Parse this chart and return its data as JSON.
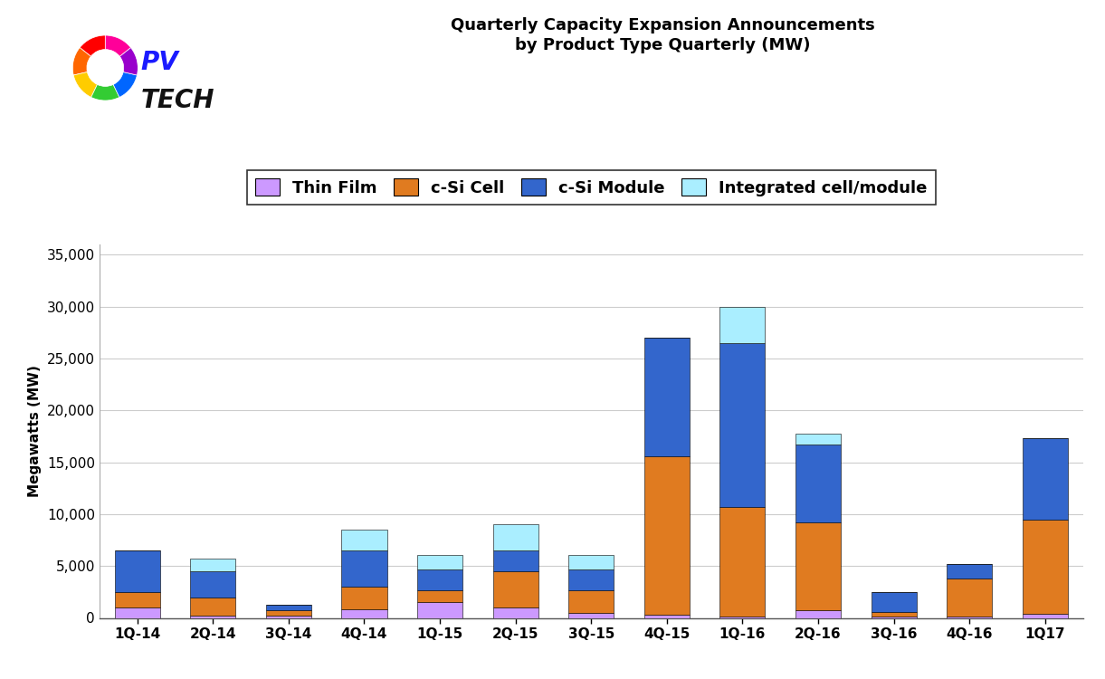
{
  "categories": [
    "1Q-14",
    "2Q-14",
    "3Q-14",
    "4Q-14",
    "1Q-15",
    "2Q-15",
    "3Q-15",
    "4Q-15",
    "1Q-16",
    "2Q-16",
    "3Q-16",
    "4Q-16",
    "1Q17"
  ],
  "thin_film": [
    1000,
    200,
    200,
    800,
    1500,
    1000,
    500,
    300,
    100,
    700,
    100,
    100,
    370
  ],
  "csi_cell": [
    1500,
    1800,
    500,
    2200,
    1200,
    3500,
    2200,
    15300,
    10600,
    8500,
    500,
    3700,
    9140
  ],
  "csi_module": [
    4000,
    2500,
    600,
    3500,
    2000,
    2000,
    2000,
    11400,
    15800,
    7500,
    1900,
    1400,
    7815
  ],
  "integrated": [
    0,
    1200,
    0,
    2000,
    1400,
    2500,
    1400,
    0,
    3500,
    1100,
    0,
    0,
    0
  ],
  "colors": {
    "thin_film": "#cc99ff",
    "csi_cell": "#e07b20",
    "csi_module": "#3366cc",
    "integrated": "#aaeeff"
  },
  "title_line1": "Quarterly Capacity Expansion Announcements",
  "title_line2": "by Product Type Quarterly (MW)",
  "ylabel": "Megawatts (MW)",
  "ylim": [
    0,
    36000
  ],
  "yticks": [
    0,
    5000,
    10000,
    15000,
    20000,
    25000,
    30000,
    35000
  ],
  "legend_labels": [
    "Thin Film",
    "c-Si Cell",
    "c-Si Module",
    "Integrated cell/module"
  ],
  "background_color": "#ffffff",
  "grid_color": "#cccccc",
  "title_fontsize": 13,
  "axis_fontsize": 11,
  "tick_fontsize": 11,
  "legend_fontsize": 13
}
